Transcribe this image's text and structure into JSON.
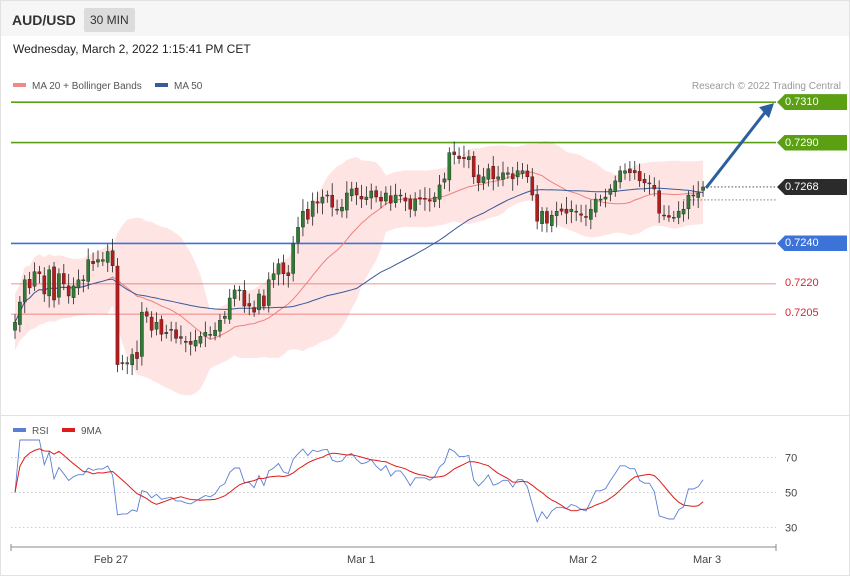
{
  "header": {
    "symbol": "AUD/USD",
    "timeframe": "30 MIN"
  },
  "timestamp": "Wednesday, March 2, 2022 1:15:41 PM CET",
  "legend": {
    "ma20_label": "MA 20 + Bollinger Bands",
    "ma50_label": "MA 50",
    "credit": "Research © 2022 Trading Central"
  },
  "rsi_legend": {
    "rsi_label": "RSI",
    "ma9_label": "9MA"
  },
  "colors": {
    "resistance": "#5aa012",
    "support": "#3b73d9",
    "minor": "#e03030",
    "up_candle": "#2e7d32",
    "down_candle": "#b71c1c",
    "bands": "#ffd6d6",
    "ma50": "#3a5a9a",
    "ma20": "#f08080",
    "arrow": "#2b5fa0",
    "rsi": "#5b7fd4",
    "rsi_ma": "#e01b1b"
  },
  "chart_data": [
    {
      "type": "candlestick",
      "title": "AUD/USD",
      "ylim": [
        0.716,
        0.7318
      ],
      "x_ticks": [
        "Feb 27",
        "Mar 1",
        "Mar 2",
        "Mar 3"
      ],
      "current_price": "0.7268",
      "levels": [
        {
          "label": "0.7310",
          "value": 0.731,
          "kind": "resistance"
        },
        {
          "label": "0.7290",
          "value": 0.729,
          "kind": "resistance"
        },
        {
          "label": "0.7240",
          "value": 0.724,
          "kind": "support"
        },
        {
          "label": "0.7220",
          "value": 0.722,
          "kind": "minor"
        },
        {
          "label": "0.7205",
          "value": 0.7205,
          "kind": "minor"
        }
      ],
      "close": [
        0.7201,
        0.7211,
        0.7222,
        0.7218,
        0.7226,
        0.7225,
        0.7215,
        0.7227,
        0.7212,
        0.7225,
        0.722,
        0.7214,
        0.7219,
        0.7222,
        0.7222,
        0.7232,
        0.723,
        0.7232,
        0.7232,
        0.7236,
        0.7229,
        0.718,
        0.7181,
        0.7181,
        0.7185,
        0.7183,
        0.7206,
        0.7204,
        0.7197,
        0.7201,
        0.7195,
        0.7196,
        0.7197,
        0.7193,
        0.7193,
        0.7191,
        0.719,
        0.7192,
        0.7194,
        0.7196,
        0.7195,
        0.7197,
        0.7202,
        0.7204,
        0.7213,
        0.7217,
        0.7217,
        0.7209,
        0.7209,
        0.7206,
        0.7215,
        0.7209,
        0.7222,
        0.7225,
        0.723,
        0.7225,
        0.7224,
        0.724,
        0.7248,
        0.7256,
        0.7252,
        0.7261,
        0.726,
        0.7263,
        0.7264,
        0.7258,
        0.7257,
        0.7258,
        0.7265,
        0.7267,
        0.7264,
        0.7262,
        0.7263,
        0.7266,
        0.7263,
        0.7261,
        0.7265,
        0.726,
        0.7264,
        0.7264,
        0.7261,
        0.7257,
        0.7262,
        0.7262,
        0.7262,
        0.7261,
        0.7263,
        0.7269,
        0.7272,
        0.7285,
        0.7284,
        0.7282,
        0.7282,
        0.7283,
        0.7273,
        0.727,
        0.7273,
        0.7277,
        0.7272,
        0.7273,
        0.7275,
        0.7275,
        0.7272,
        0.7276,
        0.7276,
        0.7273,
        0.7264,
        0.7251,
        0.7256,
        0.725,
        0.7254,
        0.7256,
        0.7256,
        0.7255,
        0.7257,
        0.7256,
        0.7254,
        0.7253,
        0.7257,
        0.7262,
        0.7262,
        0.7263,
        0.7267,
        0.7271,
        0.7276,
        0.7276,
        0.7275,
        0.7275,
        0.7271,
        0.727,
        0.727,
        0.7267,
        0.7255,
        0.7254,
        0.7253,
        0.7253,
        0.7256,
        0.7257,
        0.7264,
        0.7264,
        0.7265,
        0.7268
      ],
      "ma20_label": "MA 20 + Bollinger Bands",
      "ma50_label": "MA 50"
    },
    {
      "type": "line",
      "title": "RSI",
      "ylim": [
        20,
        80
      ],
      "y_ticks": [
        30,
        50,
        70
      ],
      "series": [
        {
          "name": "RSI"
        },
        {
          "name": "9MA"
        }
      ]
    }
  ]
}
